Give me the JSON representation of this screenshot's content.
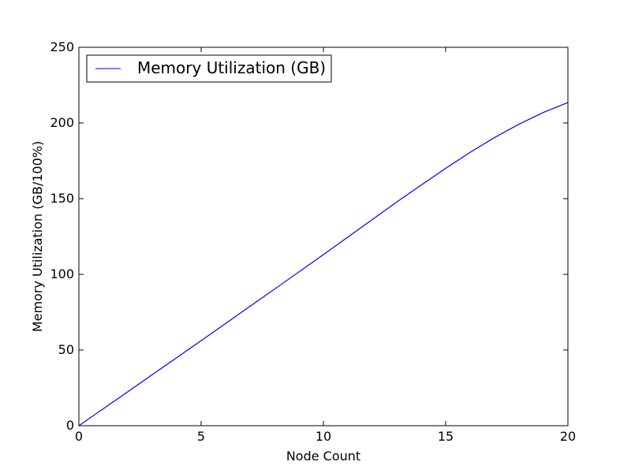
{
  "chart_data": {
    "type": "line",
    "title": "",
    "xlabel": "Node Count",
    "ylabel": "Memory Utilization (GB/100%)",
    "xlim": [
      0,
      20
    ],
    "ylim": [
      0,
      250
    ],
    "xticks": [
      0,
      5,
      10,
      15,
      20
    ],
    "yticks": [
      0,
      50,
      100,
      150,
      200,
      250
    ],
    "grid": false,
    "legend_position": "upper-left",
    "series": [
      {
        "name": "Memory Utilization (GB)",
        "color": "#0000ff",
        "x": [
          0,
          1,
          2,
          3,
          4,
          5,
          6,
          7,
          8,
          9,
          10,
          11,
          12,
          13,
          14,
          15,
          16,
          17,
          18,
          19,
          20
        ],
        "y": [
          0,
          11.2,
          22.4,
          33.7,
          44.9,
          56.2,
          67.5,
          78.9,
          90.2,
          101.6,
          113.0,
          124.6,
          136.2,
          147.8,
          159.0,
          170.0,
          180.6,
          190.4,
          199.2,
          207.0,
          213.5
        ]
      }
    ]
  }
}
